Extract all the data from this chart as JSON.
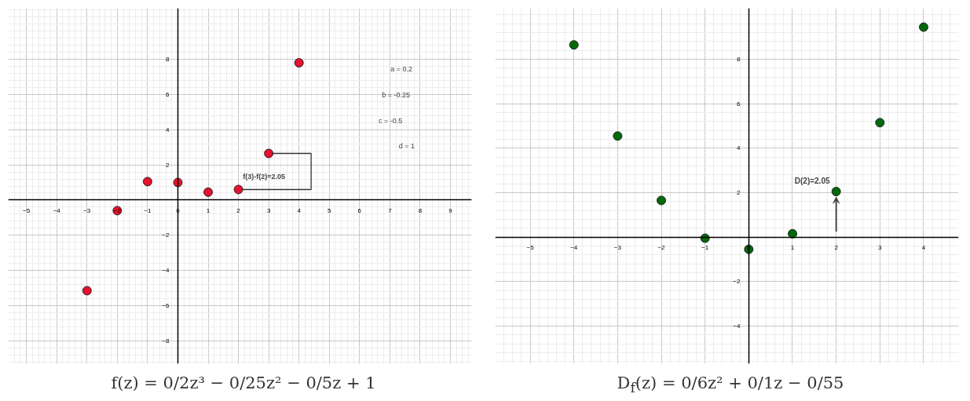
{
  "chart_data": [
    {
      "type": "scatter",
      "title": "f(z) = 0/2z³ − 0/25z² − 0/5z + 1",
      "x": [
        -3,
        -2,
        -1,
        0,
        1,
        2,
        3,
        4
      ],
      "series": [
        {
          "color": "#e8102e",
          "values": [
            -5.15,
            -0.6,
            1.05,
            1,
            0.45,
            0.6,
            2.65,
            7.8
          ]
        }
      ],
      "xlim": [
        -5.6,
        9.7
      ],
      "ylim": [
        -9.3,
        10.9
      ],
      "xticks": [
        -5,
        -4,
        -3,
        -2,
        -1,
        0,
        1,
        2,
        3,
        4,
        5,
        6,
        7,
        8,
        9
      ],
      "yticks": [
        -8,
        -6,
        -4,
        -2,
        2,
        4,
        6,
        8
      ],
      "annotations": [
        {
          "text": "f(3)-f(2)=2.05",
          "x": 2,
          "y": 0.6
        },
        "a = 0.2",
        "b = -0.25",
        "c = -0.5",
        "d = 1"
      ],
      "grid": true,
      "marker": "circle"
    },
    {
      "type": "scatter",
      "title": "D$_{f}$(z) = 0/6z² + 0/1z − 0/55",
      "x": [
        -4,
        -3,
        -2,
        -1,
        0,
        1,
        2,
        3,
        4
      ],
      "series": [
        {
          "color": "#006a0a",
          "values": [
            8.65,
            4.55,
            1.65,
            -0.05,
            -0.55,
            0.15,
            2.05,
            5.15,
            9.45
          ]
        }
      ],
      "xlim": [
        -5.8,
        4.8
      ],
      "ylim": [
        -5.7,
        10.3
      ],
      "xticks": [
        -5,
        -4,
        -3,
        -2,
        -1,
        0,
        1,
        2,
        3,
        4
      ],
      "yticks": [
        -4,
        -2,
        2,
        4,
        6,
        8
      ],
      "annotations": [
        {
          "text": "D(2)=2.05",
          "x": 2,
          "y": 2.05
        }
      ],
      "grid": true,
      "marker": "circle"
    }
  ]
}
